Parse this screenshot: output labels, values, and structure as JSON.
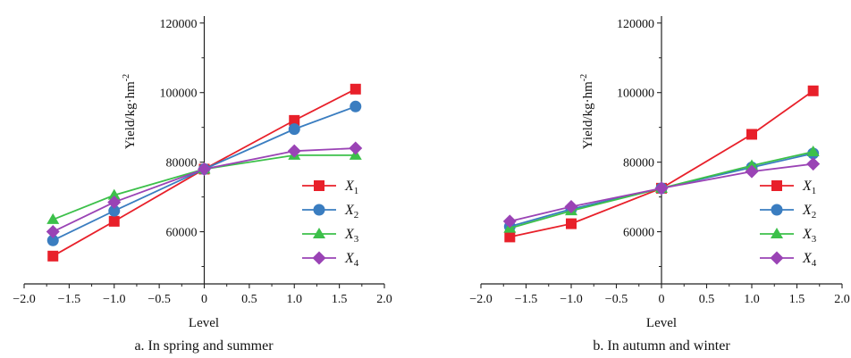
{
  "chart_data": [
    {
      "type": "line",
      "title": "",
      "caption": "a. In spring and summer",
      "xlabel": "Level",
      "ylabel": "Yield/kg·hm",
      "ylabel_sup": "-2",
      "xlim": [
        -2.0,
        2.0
      ],
      "ylim": [
        45000,
        122000
      ],
      "xticks": [
        -2.0,
        -1.5,
        -1.0,
        -0.5,
        0,
        0.5,
        1.0,
        1.5,
        2.0
      ],
      "xtick_labels": [
        "−2.0",
        "−1.5",
        "−1.0",
        "−0.5",
        "0",
        "0.5",
        "1.0",
        "1.5",
        "2.0"
      ],
      "yticks": [
        60000,
        80000,
        100000,
        120000
      ],
      "ytick_labels": [
        "60000",
        "80000",
        "100000",
        "120000"
      ],
      "grid": false,
      "legend_position": "bottom-right",
      "x": [
        -1.68,
        -1.0,
        0,
        1.0,
        1.68
      ],
      "series": [
        {
          "name": "X",
          "sub": "1",
          "color": "#e8202a",
          "marker": "square",
          "values": [
            53000,
            63000,
            78000,
            92000,
            101000
          ]
        },
        {
          "name": "X",
          "sub": "2",
          "color": "#3a7dc0",
          "marker": "circle",
          "values": [
            57500,
            66000,
            78000,
            89500,
            96000
          ]
        },
        {
          "name": "X",
          "sub": "3",
          "color": "#3cc04a",
          "marker": "triangle",
          "values": [
            63500,
            70500,
            78000,
            82000,
            82000
          ]
        },
        {
          "name": "X",
          "sub": "4",
          "color": "#9a43b5",
          "marker": "diamond",
          "values": [
            60000,
            68500,
            78000,
            83200,
            84000
          ]
        }
      ]
    },
    {
      "type": "line",
      "title": "",
      "caption": "b. In autumn and winter",
      "xlabel": "Level",
      "ylabel": "Yield/kg·hm",
      "ylabel_sup": "-2",
      "xlim": [
        -2.0,
        2.0
      ],
      "ylim": [
        45000,
        122000
      ],
      "xticks": [
        -2.0,
        -1.5,
        -1.0,
        -0.5,
        0,
        0.5,
        1.0,
        1.5,
        2.0
      ],
      "xtick_labels": [
        "−2.0",
        "−1.5",
        "−1.0",
        "−0.5",
        "0",
        "0.5",
        "1.0",
        "1.5",
        "2.0"
      ],
      "yticks": [
        60000,
        80000,
        100000,
        120000
      ],
      "ytick_labels": [
        "60000",
        "80000",
        "100000",
        "120000"
      ],
      "grid": false,
      "legend_position": "bottom-right",
      "x": [
        -1.68,
        -1.0,
        0,
        1.0,
        1.68
      ],
      "series": [
        {
          "name": "X",
          "sub": "1",
          "color": "#e8202a",
          "marker": "square",
          "values": [
            58500,
            62300,
            72500,
            88000,
            100500
          ]
        },
        {
          "name": "X",
          "sub": "2",
          "color": "#3a7dc0",
          "marker": "circle",
          "values": [
            61500,
            66500,
            72500,
            78500,
            82500
          ]
        },
        {
          "name": "X",
          "sub": "3",
          "color": "#3cc04a",
          "marker": "triangle",
          "values": [
            61000,
            66000,
            72500,
            79000,
            83000
          ]
        },
        {
          "name": "X",
          "sub": "4",
          "color": "#9a43b5",
          "marker": "diamond",
          "values": [
            63000,
            67200,
            72500,
            77300,
            79500
          ]
        }
      ]
    }
  ]
}
